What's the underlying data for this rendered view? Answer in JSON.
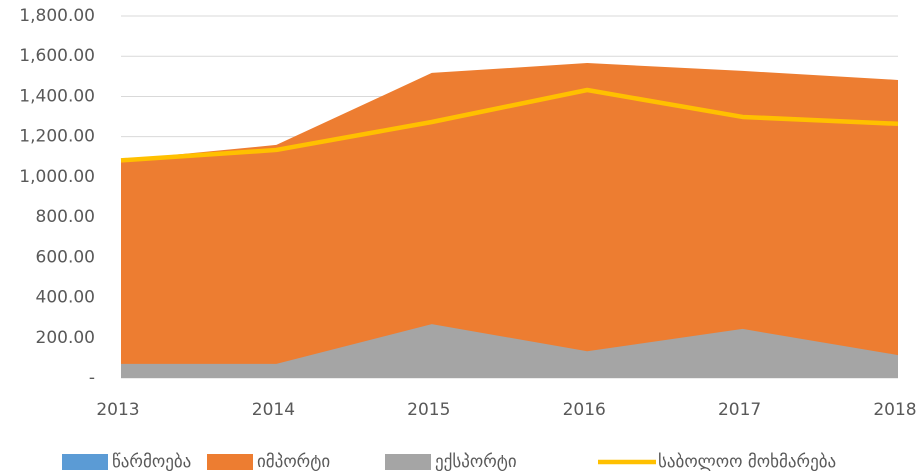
{
  "chart_data": {
    "type": "area",
    "categories": [
      "2013",
      "2014",
      "2015",
      "2016",
      "2017",
      "2018"
    ],
    "series": [
      {
        "name": "წარმოება",
        "color": "#5b9bd5",
        "kind": "area",
        "values": [
          65,
          40,
          20,
          5,
          20,
          10
        ]
      },
      {
        "name": "იმპორტი",
        "color": "#ed7d31",
        "kind": "area",
        "values": [
          1084,
          1159,
          1517,
          1566,
          1527,
          1482
        ]
      },
      {
        "name": "ექსპორტი",
        "color": "#a5a5a5",
        "kind": "area",
        "values": [
          70,
          70,
          268,
          133,
          244,
          114
        ]
      },
      {
        "name": "საბოლოო მოხმარება",
        "color": "#ffc000",
        "kind": "line",
        "values": [
          1082,
          1134,
          1273,
          1432,
          1298,
          1264
        ]
      }
    ],
    "ylim": [
      0,
      1800
    ],
    "yticks": [
      {
        "value": 0,
        "label": "-"
      },
      {
        "value": 200,
        "label": "200.00"
      },
      {
        "value": 400,
        "label": "400.00"
      },
      {
        "value": 600,
        "label": "600.00"
      },
      {
        "value": 800,
        "label": "800.00"
      },
      {
        "value": 1000,
        "label": "1,000.00"
      },
      {
        "value": 1200,
        "label": "1,200.00"
      },
      {
        "value": 1400,
        "label": "1,400.00"
      },
      {
        "value": 1600,
        "label": "1,600.00"
      },
      {
        "value": 1800,
        "label": "1,800.00"
      }
    ],
    "grid": true,
    "legend": "bottom"
  }
}
